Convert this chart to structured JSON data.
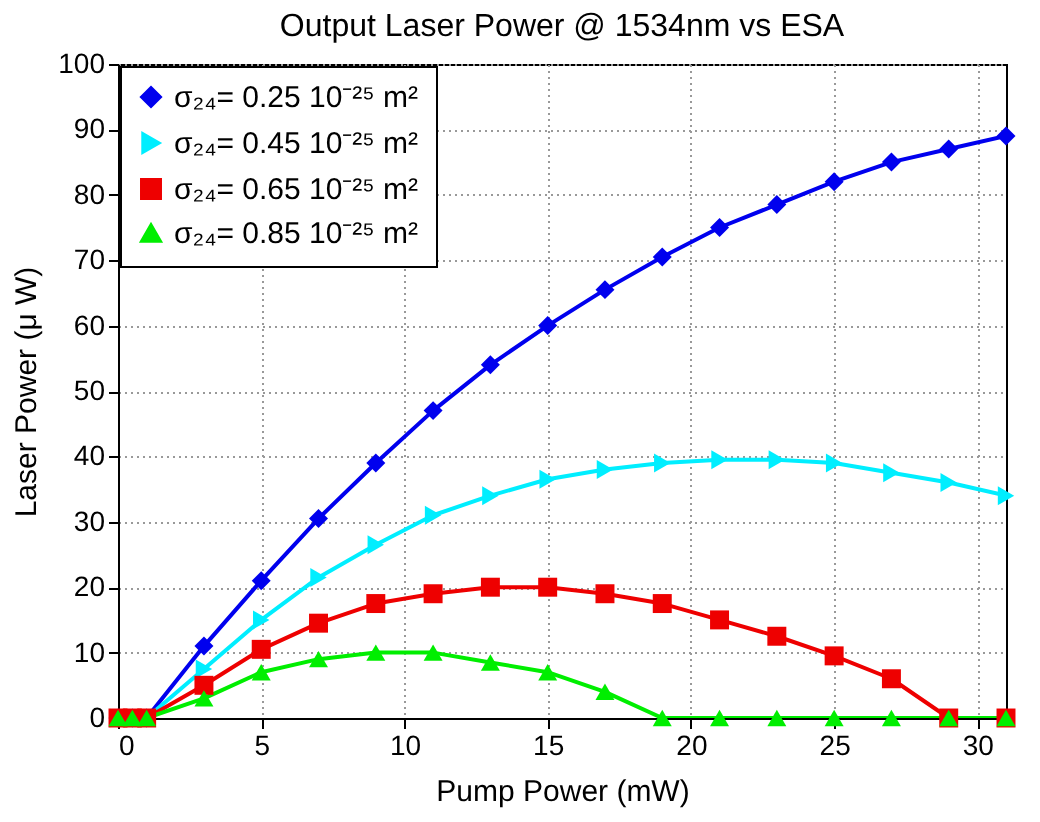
{
  "chart_data": {
    "type": "line",
    "title": "Output Laser Power @ 1534nm vs ESA",
    "xlabel": "Pump Power (mW)",
    "ylabel": "Laser Power (μ W)",
    "x": [
      0,
      0.5,
      1,
      3,
      5,
      7,
      9,
      11,
      13,
      15,
      17,
      19,
      21,
      23,
      25,
      27,
      29,
      31
    ],
    "series": [
      {
        "name": "σ₂₄= 0.25 10⁻²⁵ m²",
        "color": "#0000ee",
        "marker": "diamond",
        "values": [
          0,
          0,
          0,
          11,
          21,
          30.5,
          39,
          47,
          54,
          60,
          65.5,
          70.5,
          75,
          78.5,
          82,
          85,
          87,
          89
        ]
      },
      {
        "name": "σ₂₄= 0.45 10⁻²⁵ m²",
        "color": "#00eeff",
        "marker": "triangle-right",
        "values": [
          0,
          0,
          0,
          7.5,
          15,
          21.5,
          26.5,
          31,
          34,
          36.5,
          38,
          39,
          39.5,
          39.5,
          39,
          37.5,
          36,
          34
        ]
      },
      {
        "name": "σ₂₄= 0.65 10⁻²⁵ m²",
        "color": "#ee0000",
        "marker": "square",
        "values": [
          0,
          0,
          0,
          5,
          10.5,
          14.5,
          17.5,
          19,
          20,
          20,
          19,
          17.5,
          15,
          12.5,
          9.5,
          6,
          0,
          0
        ]
      },
      {
        "name": "σ₂₄= 0.85 10⁻²⁵ m²",
        "color": "#00ee00",
        "marker": "triangle",
        "values": [
          0,
          0,
          0,
          3,
          7,
          9,
          10,
          10,
          8.5,
          7,
          4,
          0,
          0,
          0,
          0,
          0,
          0,
          0
        ]
      }
    ],
    "xlim": [
      0,
      31
    ],
    "xticks": [
      0,
      5,
      10,
      15,
      20,
      25,
      30
    ],
    "ylim": [
      0,
      100
    ],
    "yticks": [
      0,
      10,
      20,
      30,
      40,
      50,
      60,
      70,
      80,
      90,
      100
    ],
    "grid": true,
    "legend": "top left"
  }
}
